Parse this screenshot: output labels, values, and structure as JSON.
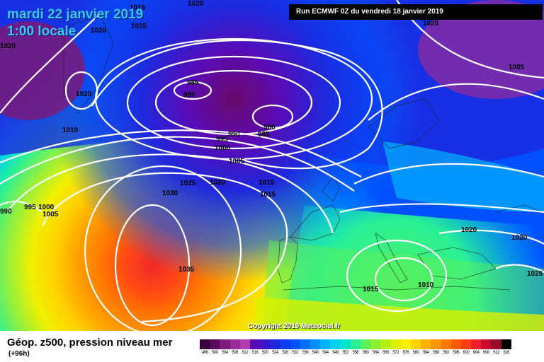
{
  "header": {
    "date": "mardi 22 janvier 2019",
    "time": "1:00 locale",
    "run": "Run ECMWF 0Z du vendredi 18 janvier 2019"
  },
  "copyright": "Copyright 2019 Meteociel.fr",
  "footer": {
    "title": "Géop. z500, pression niveau mer",
    "lead": "(+96h)"
  },
  "legend": {
    "ticks": [
      "496",
      "500",
      "504",
      "508",
      "512",
      "516",
      "520",
      "524",
      "528",
      "532",
      "536",
      "540",
      "544",
      "548",
      "552",
      "556",
      "560",
      "564",
      "568",
      "572",
      "576",
      "580",
      "584",
      "588",
      "592",
      "596",
      "600",
      "604",
      "608",
      "612",
      "616"
    ],
    "colors": [
      "#3a003a",
      "#5a0a5a",
      "#7a1a7a",
      "#9a2a9a",
      "#b03cb0",
      "#5a0ab4",
      "#3a14c8",
      "#1e28dc",
      "#0a3cf0",
      "#0050ff",
      "#0070ff",
      "#0090ff",
      "#00b4ff",
      "#00d2f0",
      "#00e6c8",
      "#28f096",
      "#5af05a",
      "#8cf032",
      "#b4f014",
      "#dcf000",
      "#fff000",
      "#ffd200",
      "#ffb400",
      "#ff9600",
      "#ff7800",
      "#ff5a00",
      "#ff3c14",
      "#f01e28",
      "#c80a32",
      "#960a28",
      "#000000"
    ]
  },
  "isobars": [
    {
      "label": "1020"
    },
    {
      "label": "1015"
    },
    {
      "label": "1020"
    },
    {
      "label": "1025"
    },
    {
      "label": "1020"
    },
    {
      "label": "1020"
    },
    {
      "label": "1010"
    },
    {
      "label": "985"
    },
    {
      "label": "980"
    },
    {
      "label": "980"
    },
    {
      "label": "985"
    },
    {
      "label": "990"
    },
    {
      "label": "995"
    },
    {
      "label": "1000"
    },
    {
      "label": "1005"
    },
    {
      "label": "1005"
    },
    {
      "label": "1020"
    },
    {
      "label": "1025"
    },
    {
      "label": "1020"
    },
    {
      "label": "1010"
    },
    {
      "label": "1030"
    },
    {
      "label": "1015"
    },
    {
      "label": "990"
    },
    {
      "label": "995"
    },
    {
      "label": "1000"
    },
    {
      "label": "1005"
    },
    {
      "label": "1035"
    },
    {
      "label": "1015"
    },
    {
      "label": "1010"
    },
    {
      "label": "1020"
    },
    {
      "label": "1020"
    },
    {
      "label": "1025"
    }
  ]
}
